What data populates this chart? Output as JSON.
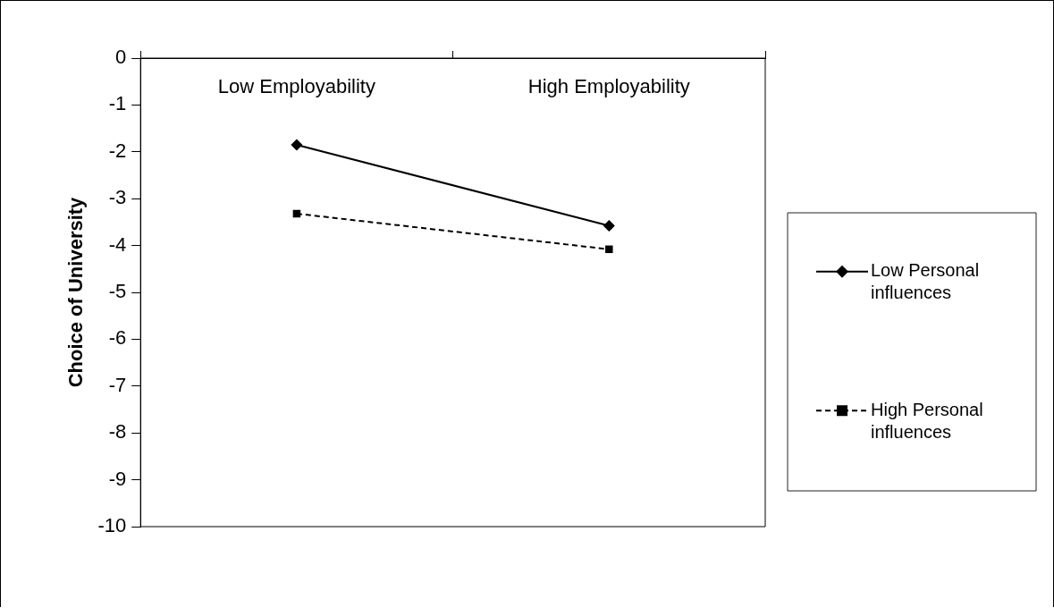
{
  "chart_data": {
    "type": "line",
    "ylabel": "Choice of University",
    "categories": [
      "Low Employability",
      "High Employability"
    ],
    "series": [
      {
        "name": "Low Personal influences",
        "color": "#000000",
        "values": [
          -1.85,
          -3.58
        ],
        "marker": "diamond",
        "line_style": "solid"
      },
      {
        "name": "High Personal influences",
        "color": "#000000",
        "values": [
          -3.32,
          -4.08
        ],
        "marker": "square",
        "line_style": "dashed"
      }
    ],
    "ylim": [
      -10,
      0
    ],
    "yticks": [
      -10,
      -9,
      -8,
      -7,
      -6,
      -5,
      -4,
      -3,
      -2,
      -1,
      0
    ],
    "grid": false,
    "legend": "right"
  }
}
